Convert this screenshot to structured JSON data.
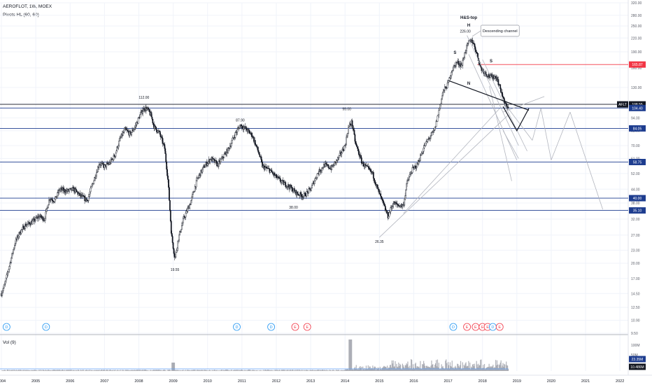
{
  "header": {
    "symbol_line": "AEROFLOT, 1W, MOEX",
    "indicator_line": "Pivots HL (60, 60)",
    "volume_label": "Vol (9)"
  },
  "chart_data": {
    "type": "candlestick",
    "symbol": "AEROFLOT",
    "interval": "1W",
    "exchange": "MOEX",
    "scale": "log",
    "ylim": [
      9.5,
      320
    ],
    "xlim": [
      2004.0,
      2022.2
    ],
    "price_ticks": [
      "320.00",
      "280.00",
      "250.00",
      "220.00",
      "190.00",
      "160.00",
      "130.00",
      "110.00",
      "94.00",
      "82.00",
      "70.00",
      "61.00",
      "52.00",
      "44.00",
      "38.00",
      "32.00",
      "27.00",
      "23.00",
      "20.00",
      "17.00",
      "14.50",
      "12.50",
      "10.90",
      "9.50"
    ],
    "x_ticks": [
      "2004",
      "2005",
      "2006",
      "2007",
      "2008",
      "2009",
      "2010",
      "2011",
      "2012",
      "2013",
      "2014",
      "2015",
      "2016",
      "2017",
      "2018",
      "2019",
      "2020",
      "2021",
      "2022"
    ],
    "price_path": [
      [
        2004.0,
        14.5
      ],
      [
        2004.1,
        16
      ],
      [
        2004.25,
        20
      ],
      [
        2004.4,
        25
      ],
      [
        2004.55,
        28
      ],
      [
        2004.7,
        30
      ],
      [
        2004.9,
        31
      ],
      [
        2005.1,
        33
      ],
      [
        2005.25,
        32
      ],
      [
        2005.4,
        40
      ],
      [
        2005.55,
        39
      ],
      [
        2005.7,
        44
      ],
      [
        2005.9,
        43
      ],
      [
        2006.1,
        44
      ],
      [
        2006.3,
        41
      ],
      [
        2006.5,
        39
      ],
      [
        2006.7,
        49
      ],
      [
        2006.85,
        58
      ],
      [
        2007.0,
        56
      ],
      [
        2007.15,
        58
      ],
      [
        2007.3,
        63
      ],
      [
        2007.45,
        75
      ],
      [
        2007.6,
        83
      ],
      [
        2007.75,
        79
      ],
      [
        2007.9,
        86
      ],
      [
        2008.05,
        98
      ],
      [
        2008.15,
        104
      ],
      [
        2008.25,
        103
      ],
      [
        2008.35,
        97
      ],
      [
        2008.45,
        85
      ],
      [
        2008.6,
        80
      ],
      [
        2008.75,
        68
      ],
      [
        2008.85,
        48
      ],
      [
        2008.95,
        27
      ],
      [
        2009.05,
        21
      ],
      [
        2009.15,
        26
      ],
      [
        2009.3,
        32
      ],
      [
        2009.5,
        38
      ],
      [
        2009.7,
        49
      ],
      [
        2009.9,
        56
      ],
      [
        2010.1,
        61
      ],
      [
        2010.3,
        57
      ],
      [
        2010.45,
        62
      ],
      [
        2010.6,
        67
      ],
      [
        2010.8,
        79
      ],
      [
        2010.95,
        87
      ],
      [
        2011.1,
        84
      ],
      [
        2011.3,
        78
      ],
      [
        2011.5,
        64
      ],
      [
        2011.6,
        56
      ],
      [
        2011.8,
        54
      ],
      [
        2012.0,
        50
      ],
      [
        2012.2,
        47
      ],
      [
        2012.4,
        45
      ],
      [
        2012.6,
        42
      ],
      [
        2012.8,
        41
      ],
      [
        2013.0,
        44
      ],
      [
        2013.2,
        52
      ],
      [
        2013.4,
        57
      ],
      [
        2013.6,
        55
      ],
      [
        2013.8,
        61
      ],
      [
        2014.0,
        70
      ],
      [
        2014.1,
        85
      ],
      [
        2014.2,
        90
      ],
      [
        2014.3,
        72
      ],
      [
        2014.5,
        58
      ],
      [
        2014.65,
        55
      ],
      [
        2014.8,
        52
      ],
      [
        2014.95,
        44
      ],
      [
        2015.1,
        38
      ],
      [
        2015.25,
        33
      ],
      [
        2015.4,
        38
      ],
      [
        2015.55,
        37
      ],
      [
        2015.7,
        37
      ],
      [
        2015.8,
        47
      ],
      [
        2015.95,
        54
      ],
      [
        2016.1,
        57
      ],
      [
        2016.3,
        69
      ],
      [
        2016.45,
        76
      ],
      [
        2016.6,
        82
      ],
      [
        2016.7,
        96
      ],
      [
        2016.85,
        124
      ],
      [
        2017.0,
        135
      ],
      [
        2017.1,
        155
      ],
      [
        2017.25,
        170
      ],
      [
        2017.4,
        165
      ],
      [
        2017.5,
        192
      ],
      [
        2017.6,
        210
      ],
      [
        2017.7,
        215
      ],
      [
        2017.8,
        195
      ],
      [
        2017.95,
        160
      ],
      [
        2018.1,
        150
      ],
      [
        2018.25,
        145
      ],
      [
        2018.4,
        146
      ],
      [
        2018.55,
        124
      ],
      [
        2018.65,
        108
      ],
      [
        2018.75,
        106
      ]
    ],
    "annotations": {
      "highs": [
        {
          "x": 2008.15,
          "text": "112.00",
          "y": 112
        },
        {
          "x": 2010.95,
          "text": "87.90",
          "y": 87.9
        },
        {
          "x": 2014.05,
          "text": "99.00",
          "y": 99
        },
        {
          "x": 2017.5,
          "text": "226.00",
          "y": 226
        }
      ],
      "lows": [
        {
          "x": 2009.05,
          "text": "19.55",
          "y": 19.55
        },
        {
          "x": 2012.5,
          "text": "38.00",
          "y": 38
        },
        {
          "x": 2015.0,
          "text": "26.35",
          "y": 26.35
        }
      ],
      "pattern_title": "H&S-top",
      "pattern_head": "H",
      "shoulders": [
        "S",
        "S"
      ],
      "neckline_label": "N",
      "callout": "Descending channel"
    },
    "horizontal_levels": [
      {
        "price": 165.87,
        "label": "165.87",
        "color": "#f23645"
      },
      {
        "price": 108.55,
        "label": "108.55",
        "color": "#131722"
      },
      {
        "price": 104.4,
        "label": "104.40",
        "color": "#1e3d8f"
      },
      {
        "price": 84.05,
        "label": "84.05",
        "color": "#1e3d8f"
      },
      {
        "price": 58.75,
        "label": "58.75",
        "color": "#1e3d8f"
      },
      {
        "price": 40.0,
        "label": "40.00",
        "color": "#1e3d8f"
      },
      {
        "price": 35.1,
        "label": "35.10",
        "color": "#1e3d8f"
      }
    ],
    "price_tag": {
      "symbol": "AFLT",
      "price": "108.55"
    },
    "volume_ticks": [
      "100M",
      "50M"
    ],
    "volume_tags": [
      "23.35M",
      "10.486M"
    ],
    "event_markers": [
      {
        "x": 2004.15,
        "letter": "D",
        "kind": "dividend"
      },
      {
        "x": 2005.3,
        "letter": "D",
        "kind": "dividend"
      },
      {
        "x": 2010.85,
        "letter": "D",
        "kind": "dividend"
      },
      {
        "x": 2011.85,
        "letter": "D",
        "kind": "dividend"
      },
      {
        "x": 2012.55,
        "letter": "E",
        "kind": "earnings"
      },
      {
        "x": 2012.9,
        "letter": "E",
        "kind": "earnings"
      },
      {
        "x": 2017.15,
        "letter": "D",
        "kind": "dividend"
      },
      {
        "x": 2017.55,
        "letter": "E",
        "kind": "earnings"
      },
      {
        "x": 2017.8,
        "letter": "E",
        "kind": "earnings"
      },
      {
        "x": 2018.0,
        "letter": "E",
        "kind": "earnings"
      },
      {
        "x": 2018.15,
        "letter": "E",
        "kind": "earnings"
      },
      {
        "x": 2018.3,
        "letter": "D",
        "kind": "dividend"
      },
      {
        "x": 2018.5,
        "letter": "E",
        "kind": "earnings"
      }
    ],
    "colors": {
      "up": "#131722",
      "down": "#131722",
      "grid": "#f0f3fa",
      "level_blue": "#1e3d8f",
      "level_red": "#f23645",
      "drawing": "#b2b5be",
      "dividend": "#2196f3",
      "earnings": "#f23645",
      "tag_blue": "#1e3d8f"
    }
  }
}
